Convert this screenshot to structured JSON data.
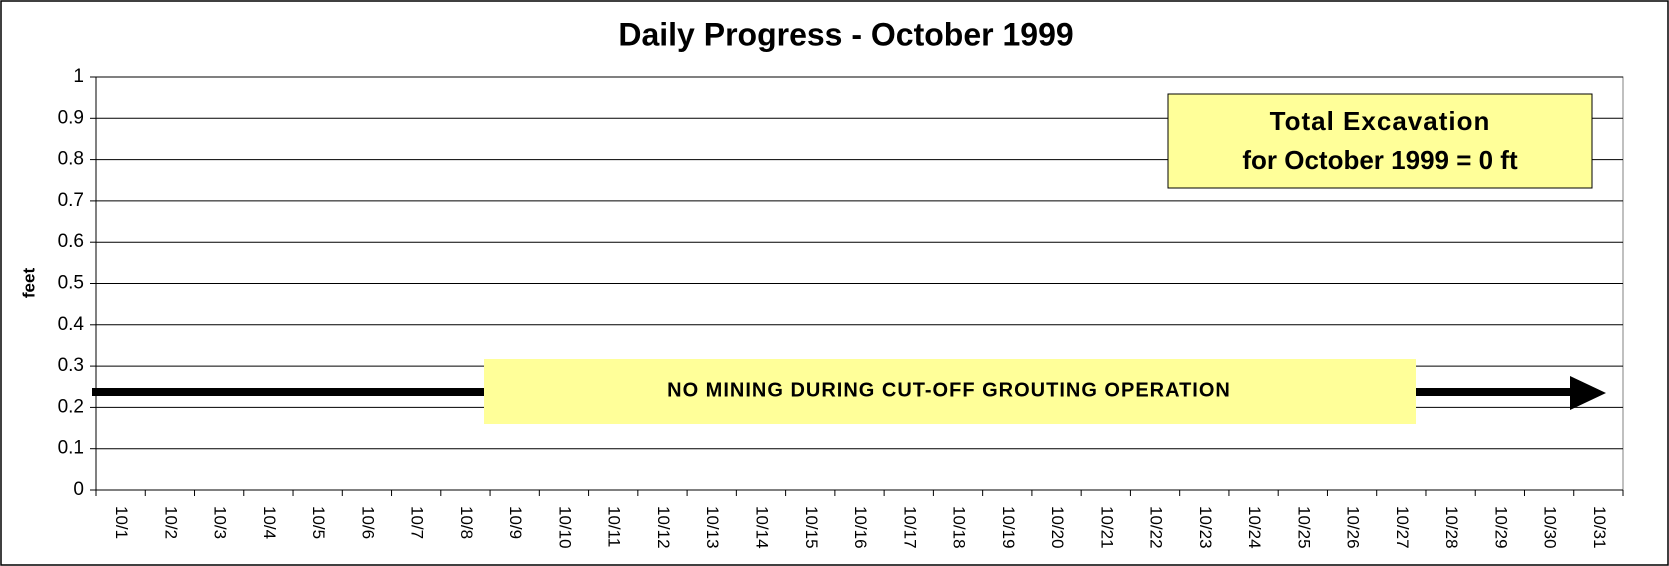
{
  "chart_data": {
    "type": "bar",
    "title": "Daily Progress - October 1999",
    "y_label": "feet",
    "categories": [
      "10/1",
      "10/2",
      "10/3",
      "10/4",
      "10/5",
      "10/6",
      "10/7",
      "10/8",
      "10/9",
      "10/10",
      "10/11",
      "10/12",
      "10/13",
      "10/14",
      "10/15",
      "10/16",
      "10/17",
      "10/18",
      "10/19",
      "10/20",
      "10/21",
      "10/22",
      "10/23",
      "10/24",
      "10/25",
      "10/26",
      "10/27",
      "10/28",
      "10/29",
      "10/30",
      "10/31"
    ],
    "values": [
      0,
      0,
      0,
      0,
      0,
      0,
      0,
      0,
      0,
      0,
      0,
      0,
      0,
      0,
      0,
      0,
      0,
      0,
      0,
      0,
      0,
      0,
      0,
      0,
      0,
      0,
      0,
      0,
      0,
      0,
      0
    ],
    "color": "#000080",
    "ylim": [
      0,
      1
    ],
    "yticks": [
      0,
      0.1,
      0.2,
      0.3,
      0.4,
      0.5,
      0.6,
      0.7,
      0.8,
      0.9,
      1
    ],
    "grid": true,
    "annotations": [
      "Total Excavation",
      "for October 1999 = 0 ft",
      "NO MINING DURING CUT-OFF GROUTING OPERATION"
    ]
  }
}
